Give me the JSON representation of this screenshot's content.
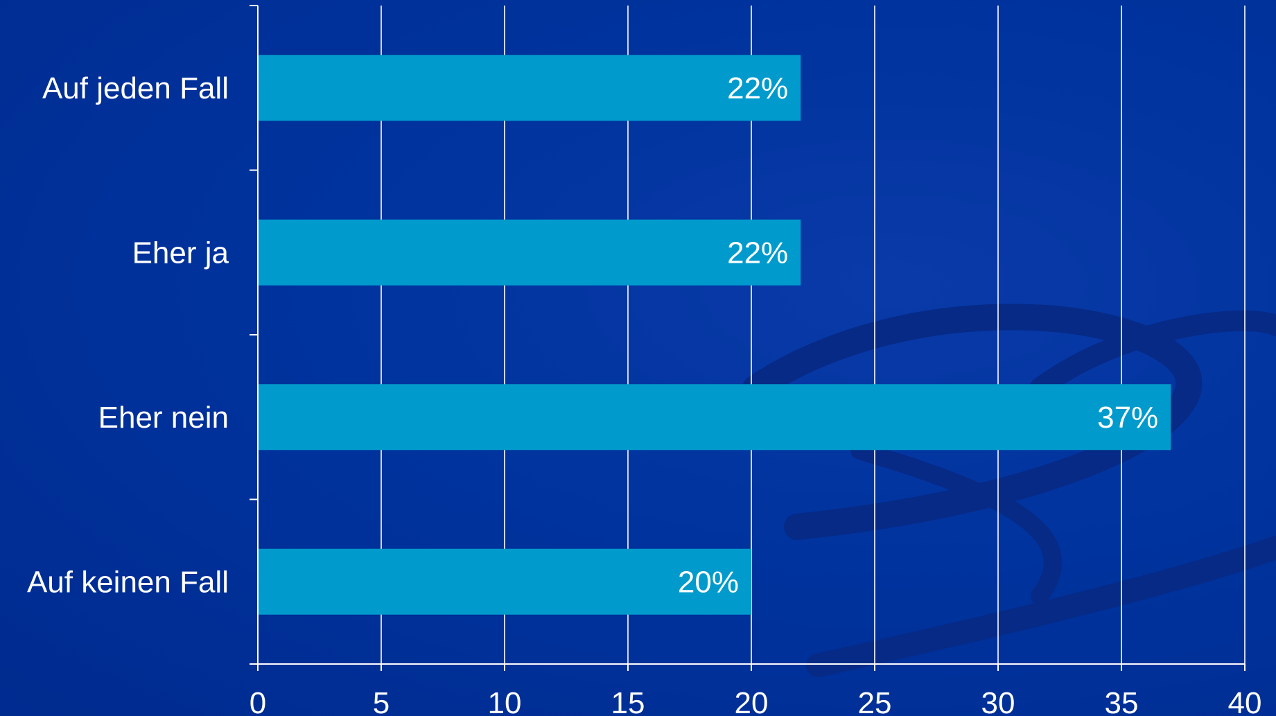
{
  "chart_data": {
    "type": "bar",
    "orientation": "horizontal",
    "categories": [
      "Auf jeden Fall",
      "Eher ja",
      "Eher nein",
      "Auf keinen Fall"
    ],
    "values": [
      22,
      22,
      37,
      20
    ],
    "data_labels": [
      "22%",
      "22%",
      "37%",
      "20%"
    ],
    "xticks": [
      "0",
      "5",
      "10",
      "15",
      "20",
      "25",
      "30",
      "35",
      "40"
    ],
    "xlim": [
      0,
      40
    ],
    "title": "",
    "xlabel": "",
    "ylabel": "",
    "grid": true,
    "legend": "none",
    "colors": {
      "bar": "#009bcc",
      "background": "#002f99",
      "text": "#ffffff",
      "grid": "#ffffff"
    }
  }
}
